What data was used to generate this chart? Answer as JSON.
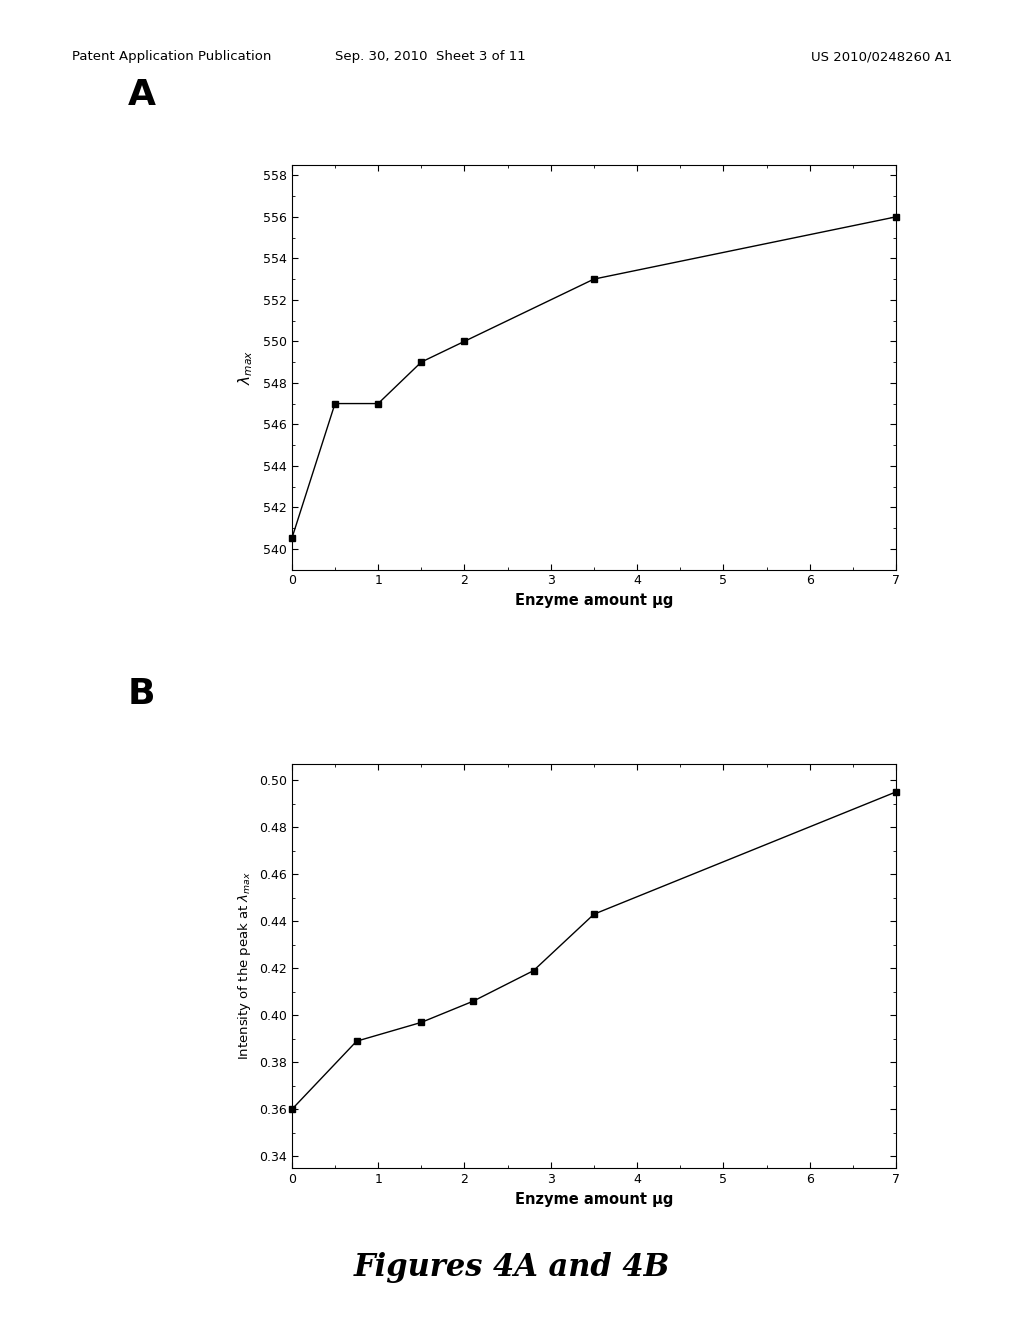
{
  "panel_A": {
    "x": [
      0,
      0.5,
      1.0,
      1.5,
      2.0,
      3.5,
      7.0
    ],
    "y": [
      540.5,
      547.0,
      547.0,
      549.0,
      550.0,
      553.0,
      556.0
    ],
    "ylabel": "$\\lambda_{max}$",
    "xlabel": "Enzyme amount μg",
    "xlim": [
      0,
      7
    ],
    "ylim": [
      539.0,
      558.5
    ],
    "yticks": [
      540,
      542,
      544,
      546,
      548,
      550,
      552,
      554,
      556,
      558
    ],
    "xticks": [
      0,
      1,
      2,
      3,
      4,
      5,
      6,
      7
    ],
    "label": "A"
  },
  "panel_B": {
    "x": [
      0,
      0.75,
      1.5,
      2.1,
      2.8,
      3.5,
      7.0
    ],
    "y": [
      0.36,
      0.389,
      0.397,
      0.406,
      0.419,
      0.443,
      0.495
    ],
    "ylabel": "Intensity of the peak at $\\lambda_{max}$",
    "xlabel": "Enzyme amount μg",
    "xlim": [
      0,
      7
    ],
    "ylim": [
      0.335,
      0.507
    ],
    "yticks": [
      0.34,
      0.36,
      0.38,
      0.4,
      0.42,
      0.44,
      0.46,
      0.48,
      0.5
    ],
    "xticks": [
      0,
      1,
      2,
      3,
      4,
      5,
      6,
      7
    ],
    "label": "B"
  },
  "header_left": "Patent Application Publication",
  "header_mid": "Sep. 30, 2010  Sheet 3 of 11",
  "header_right": "US 2010/0248260 A1",
  "footer_text": "Figures 4A and 4B",
  "bg_color": "#ffffff",
  "line_color": "#000000",
  "marker": "s",
  "marker_size": 4,
  "line_width": 1.0
}
